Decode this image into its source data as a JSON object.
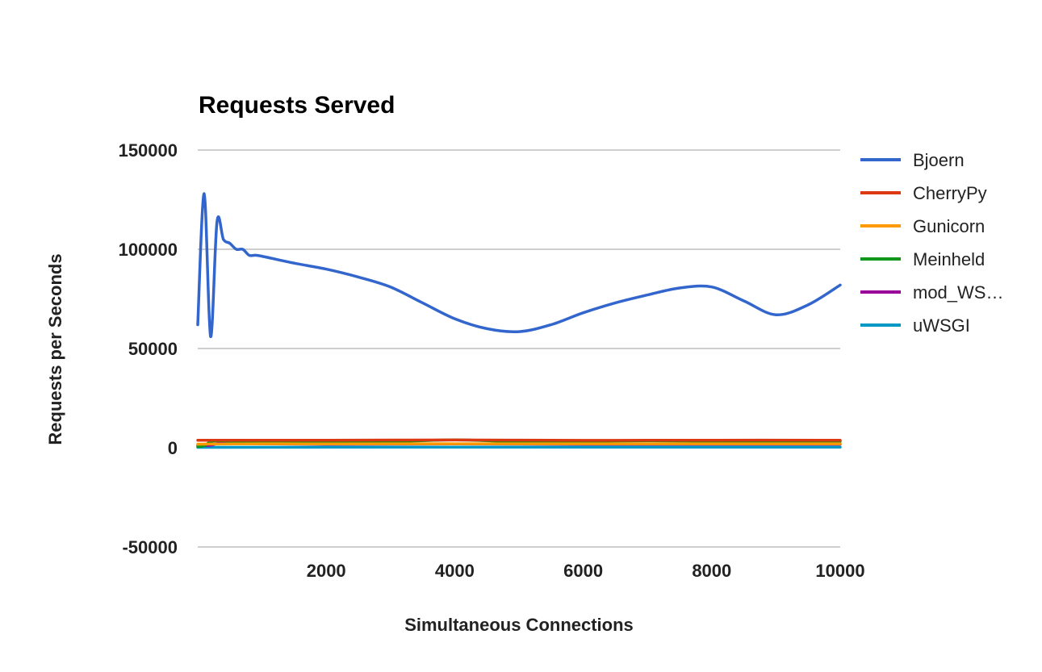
{
  "chart_data": {
    "type": "line",
    "title": "Requests Served",
    "xlabel": "Simultaneous Connections",
    "ylabel": "Requests per Seconds",
    "xlim": [
      0,
      10000
    ],
    "ylim": [
      -50000,
      150000
    ],
    "x_ticks": [
      2000,
      4000,
      6000,
      8000,
      10000
    ],
    "y_ticks": [
      150000,
      100000,
      50000,
      0,
      -50000
    ],
    "grid": true,
    "legend_position": "right",
    "series": [
      {
        "name": "Bjoern",
        "color": "#3366cc",
        "points": [
          [
            0,
            62000
          ],
          [
            100,
            128000
          ],
          [
            200,
            56000
          ],
          [
            300,
            114000
          ],
          [
            400,
            105000
          ],
          [
            500,
            103000
          ],
          [
            600,
            100000
          ],
          [
            700,
            100000
          ],
          [
            800,
            97000
          ],
          [
            900,
            97000
          ],
          [
            1000,
            96500
          ],
          [
            1500,
            93000
          ],
          [
            2000,
            90000
          ],
          [
            2500,
            86000
          ],
          [
            3000,
            81000
          ],
          [
            3500,
            73000
          ],
          [
            4000,
            65000
          ],
          [
            4500,
            60000
          ],
          [
            5000,
            58500
          ],
          [
            5500,
            62000
          ],
          [
            6000,
            68000
          ],
          [
            6500,
            73000
          ],
          [
            7000,
            77000
          ],
          [
            7500,
            80500
          ],
          [
            8000,
            81000
          ],
          [
            8500,
            74000
          ],
          [
            9000,
            67000
          ],
          [
            9500,
            72000
          ],
          [
            10000,
            82000
          ]
        ]
      },
      {
        "name": "CherryPy",
        "color": "#dc3912",
        "points": [
          [
            0,
            3800
          ],
          [
            2000,
            3800
          ],
          [
            4000,
            3900
          ],
          [
            6000,
            3700
          ],
          [
            8000,
            3800
          ],
          [
            10000,
            3800
          ]
        ]
      },
      {
        "name": "Gunicorn",
        "color": "#ff9900",
        "points": [
          [
            0,
            1800
          ],
          [
            1000,
            2000
          ],
          [
            2000,
            1900
          ],
          [
            4000,
            2000
          ],
          [
            6000,
            2000
          ],
          [
            8000,
            2000
          ],
          [
            10000,
            2000
          ]
        ]
      },
      {
        "name": "Meinheld",
        "color": "#109618",
        "points": [
          [
            0,
            600
          ],
          [
            100,
            1000
          ],
          [
            300,
            3500
          ],
          [
            1000,
            2500
          ],
          [
            2000,
            2500
          ],
          [
            3000,
            3000
          ],
          [
            4000,
            4000
          ],
          [
            5000,
            3000
          ],
          [
            6000,
            3200
          ],
          [
            7000,
            3500
          ],
          [
            8000,
            3300
          ],
          [
            9000,
            3300
          ],
          [
            10000,
            3200
          ]
        ]
      },
      {
        "name": "mod_WS…",
        "color": "#990099",
        "points": [
          [
            0,
            1200
          ],
          [
            200,
            1300
          ],
          [
            400,
            2800
          ],
          [
            600,
            2200
          ],
          [
            1000,
            2000
          ],
          [
            2000,
            1800
          ],
          [
            4000,
            1900
          ],
          [
            6000,
            1800
          ],
          [
            8000,
            1800
          ],
          [
            10000,
            1800
          ]
        ]
      },
      {
        "name": "uWSGI",
        "color": "#0099c6",
        "points": [
          [
            0,
            200
          ],
          [
            2000,
            300
          ],
          [
            4000,
            300
          ],
          [
            6000,
            300
          ],
          [
            8000,
            300
          ],
          [
            10000,
            300
          ]
        ]
      }
    ]
  }
}
